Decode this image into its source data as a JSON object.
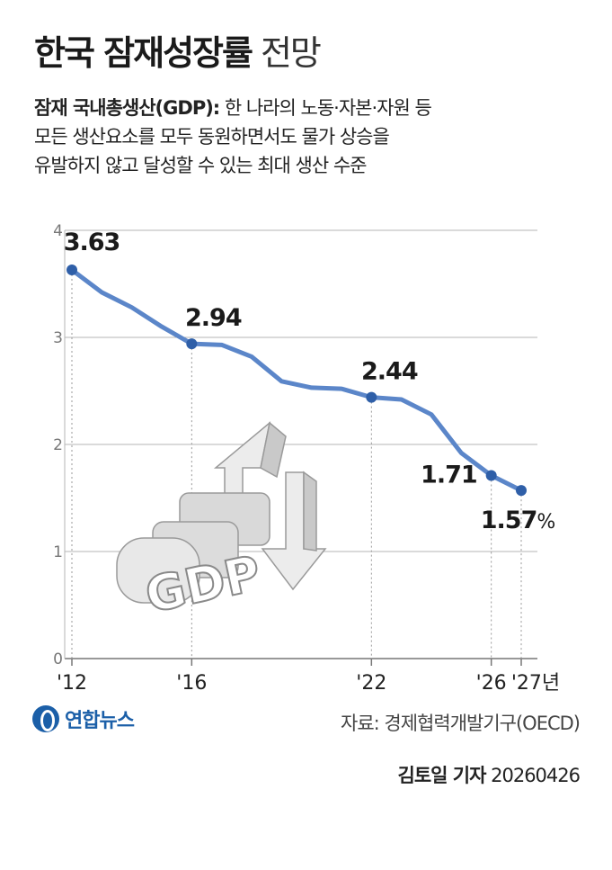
{
  "header": {
    "title_main": "한국 잠재성장률",
    "title_sub": "전망",
    "desc_term": "잠재 국내총생산(GDP):",
    "desc_line1": "한 나라의 노동·자본·자원 등",
    "desc_line2": "모든 생산요소를 모두 동원하면서도 물가 상승을",
    "desc_line3": "유발하지 않고 달성할 수 있는 최대 생산 수준"
  },
  "illustration": {
    "text": "GDP",
    "icon": "gdp-arrows-illustration"
  },
  "chart_data": {
    "type": "line",
    "ylim": [
      0,
      4
    ],
    "yticks": [
      "0",
      "1",
      "2",
      "3",
      "4"
    ],
    "x": [
      2012,
      2013,
      2014,
      2015,
      2016,
      2017,
      2018,
      2019,
      2020,
      2021,
      2022,
      2023,
      2024,
      2025,
      2026,
      2027
    ],
    "y": [
      3.63,
      3.42,
      3.28,
      3.1,
      2.94,
      2.93,
      2.82,
      2.59,
      2.53,
      2.52,
      2.44,
      2.42,
      2.28,
      1.92,
      1.71,
      1.57
    ],
    "xticks": [
      {
        "x": 2012,
        "label": "'12"
      },
      {
        "x": 2016,
        "label": "'16"
      },
      {
        "x": 2022,
        "label": "'22"
      },
      {
        "x": 2026,
        "label": "'26"
      },
      {
        "x": 2027,
        "label": "'27년"
      }
    ],
    "highlights": [
      {
        "x": 2012,
        "label": "3.63"
      },
      {
        "x": 2016,
        "label": "2.94"
      },
      {
        "x": 2022,
        "label": "2.44"
      },
      {
        "x": 2026,
        "label": "1.71"
      },
      {
        "x": 2027,
        "label": "1.57"
      }
    ],
    "unit": "%",
    "grid": true,
    "line_color": "#5b86c9",
    "dot_color": "#2f5fa8"
  },
  "footer": {
    "logo_text": "연합뉴스",
    "source": "자료: 경제협력개발기구(OECD)",
    "reporter": "김토일 기자",
    "date": "20260426"
  }
}
